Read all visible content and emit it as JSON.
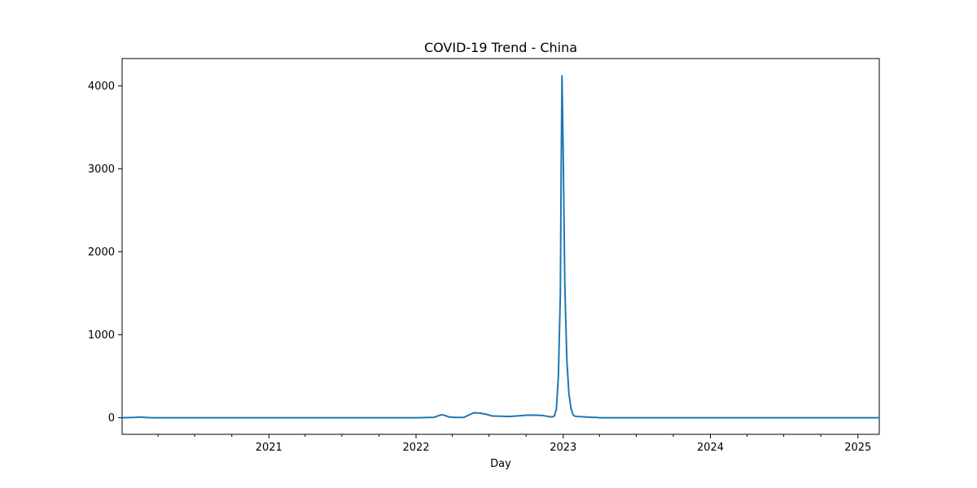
{
  "chart_data": {
    "type": "line",
    "title": "COVID-19 Trend - China",
    "xlabel": "Day",
    "ylabel": "",
    "grid": false,
    "legend": "none",
    "color": "#1f77b4",
    "xlim": [
      "2020-01-03",
      "2025-02-23"
    ],
    "ylim": [
      -200,
      4330
    ],
    "x_ticks": [
      {
        "date": "2021-01-01",
        "label": "2021"
      },
      {
        "date": "2022-01-01",
        "label": "2022"
      },
      {
        "date": "2023-01-01",
        "label": "2023"
      },
      {
        "date": "2024-01-01",
        "label": "2024"
      },
      {
        "date": "2025-01-01",
        "label": "2025"
      }
    ],
    "x_minor_ticks": [
      "2020-04-01",
      "2020-07-01",
      "2020-10-01",
      "2021-04-01",
      "2021-07-01",
      "2021-10-01",
      "2022-04-01",
      "2022-07-01",
      "2022-10-01",
      "2023-04-01",
      "2023-07-01",
      "2023-10-01",
      "2024-04-01",
      "2024-07-01",
      "2024-10-01"
    ],
    "y_ticks": [
      0,
      1000,
      2000,
      3000,
      4000
    ],
    "y_tick_labels": [
      "0",
      "1000",
      "2000",
      "3000",
      "4000"
    ],
    "series": [
      {
        "x": [
          "2020-01-03",
          "2020-02-01",
          "2020-02-15",
          "2020-03-15",
          "2020-06-01",
          "2021-01-01",
          "2021-06-01",
          "2022-01-01",
          "2022-02-15",
          "2022-03-01",
          "2022-03-08",
          "2022-03-15",
          "2022-03-25",
          "2022-04-10",
          "2022-04-30",
          "2022-05-15",
          "2022-05-25",
          "2022-06-10",
          "2022-06-25",
          "2022-07-10",
          "2022-08-01",
          "2022-08-20",
          "2022-09-10",
          "2022-10-01",
          "2022-10-20",
          "2022-11-10",
          "2022-11-25",
          "2022-12-05",
          "2022-12-10",
          "2022-12-15",
          "2022-12-20",
          "2022-12-25",
          "2022-12-27",
          "2022-12-29",
          "2023-01-01",
          "2023-01-05",
          "2023-01-10",
          "2023-01-15",
          "2023-01-20",
          "2023-01-25",
          "2023-01-29",
          "2023-02-05",
          "2023-02-15",
          "2023-03-01",
          "2023-03-15",
          "2023-03-25",
          "2023-04-01",
          "2023-07-01",
          "2024-01-01",
          "2024-07-01",
          "2025-02-23"
        ],
        "y": [
          0,
          3,
          8,
          0,
          0,
          0,
          0,
          0,
          5,
          30,
          35,
          25,
          8,
          3,
          5,
          40,
          60,
          55,
          40,
          20,
          18,
          15,
          22,
          30,
          32,
          28,
          15,
          10,
          20,
          100,
          500,
          1500,
          3000,
          4120,
          3200,
          1600,
          700,
          300,
          120,
          40,
          20,
          15,
          12,
          8,
          5,
          3,
          0,
          0,
          0,
          0,
          0
        ]
      }
    ]
  }
}
